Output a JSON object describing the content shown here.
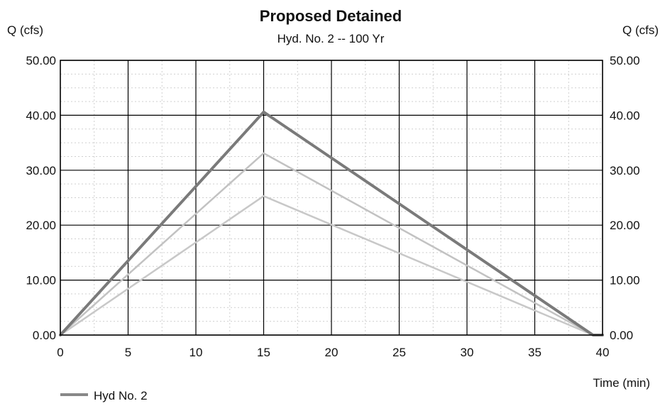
{
  "chart_data": {
    "type": "line",
    "title": "Proposed Detained",
    "subtitle": "Hyd. No. 2 -- 100 Yr",
    "ylabel_left": "Q (cfs)",
    "ylabel_right": "Q (cfs)",
    "xlabel": "Time (min)",
    "xlim": [
      0,
      40
    ],
    "ylim": [
      0,
      50
    ],
    "x_ticks": [
      0,
      5,
      10,
      15,
      20,
      25,
      30,
      35,
      40
    ],
    "x_tick_labels": [
      "0",
      "5",
      "10",
      "15",
      "20",
      "25",
      "30",
      "35",
      "40"
    ],
    "y_ticks": [
      0,
      10,
      20,
      30,
      40,
      50
    ],
    "y_tick_labels_left": [
      "0.00",
      "10.00",
      "20.00",
      "30.00",
      "40.00",
      "50.00"
    ],
    "y_tick_labels_right": [
      "0.00",
      "10.00",
      "20.00",
      "30.00",
      "40.00",
      "50.00"
    ],
    "grid": true,
    "legend_position": "bottom-left",
    "legend": [
      {
        "label": "Hyd No. 2",
        "color": "#888888"
      }
    ],
    "series": [
      {
        "name": "Hyd No. 2",
        "color": "#7a7a7a",
        "x": [
          0,
          15,
          39.3,
          40
        ],
        "y": [
          0,
          40.6,
          0,
          0
        ]
      },
      {
        "color": "#c2c2c2",
        "x": [
          0,
          15,
          39.3
        ],
        "y": [
          0,
          33.1,
          0
        ]
      },
      {
        "color": "#c8c8c8",
        "x": [
          0,
          15,
          39.3
        ],
        "y": [
          0,
          25.3,
          0
        ]
      }
    ]
  }
}
